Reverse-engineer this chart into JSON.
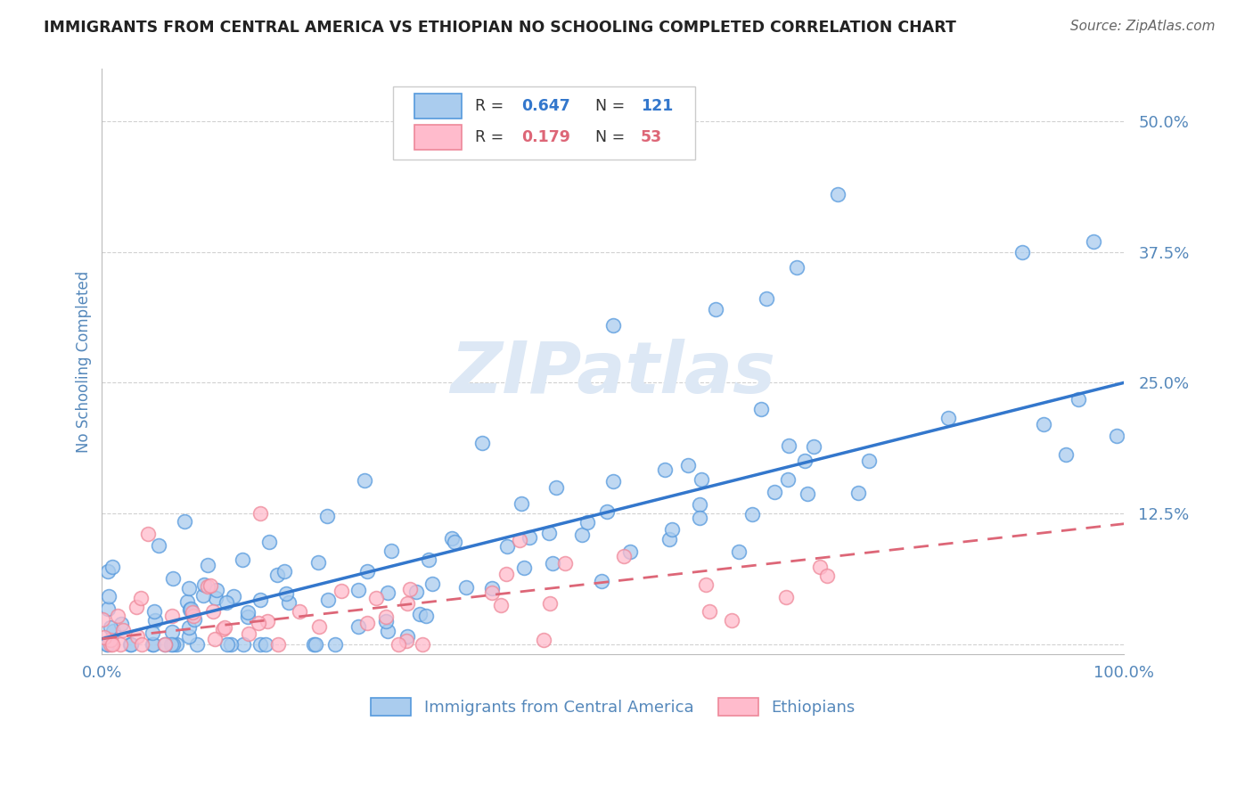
{
  "title": "IMMIGRANTS FROM CENTRAL AMERICA VS ETHIOPIAN NO SCHOOLING COMPLETED CORRELATION CHART",
  "source": "Source: ZipAtlas.com",
  "ylabel": "No Schooling Completed",
  "xlim": [
    0,
    1.0
  ],
  "ylim": [
    -0.01,
    0.55
  ],
  "yticks": [
    0.0,
    0.125,
    0.25,
    0.375,
    0.5
  ],
  "ytick_labels": [
    "",
    "12.5%",
    "25.0%",
    "37.5%",
    "50.0%"
  ],
  "legend_R1": "0.647",
  "legend_N1": "121",
  "legend_R2": "0.179",
  "legend_N2": "53",
  "blue_color": "#aaccee",
  "blue_edge_color": "#5599dd",
  "blue_line_color": "#3377cc",
  "pink_color": "#ffbbcc",
  "pink_edge_color": "#ee8899",
  "pink_line_color": "#dd6677",
  "watermark_color": "#dde8f5",
  "title_color": "#222222",
  "axis_color": "#5588bb",
  "tick_label_color": "#5588bb",
  "background_color": "#ffffff",
  "grid_color": "#cccccc",
  "source_color": "#666666",
  "blue_line_start_y": 0.005,
  "blue_line_end_y": 0.25,
  "pink_line_start_y": 0.005,
  "pink_line_end_y": 0.115
}
